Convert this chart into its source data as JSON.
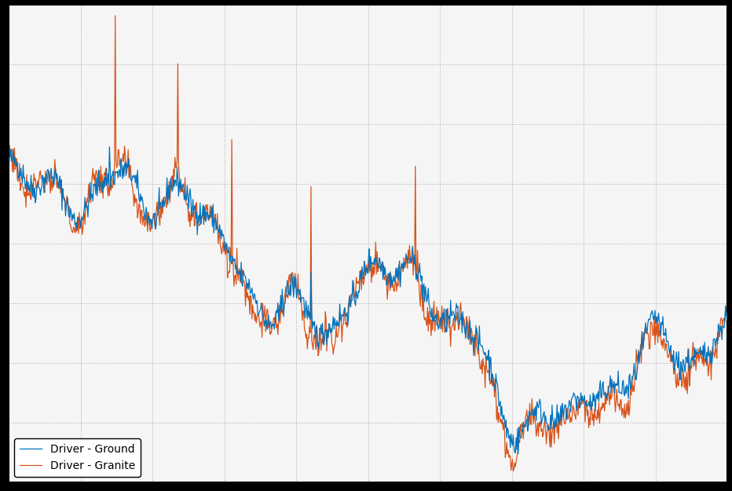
{
  "legend_entries": [
    "Driver - Ground",
    "Driver - Granite"
  ],
  "line_colors": [
    "#0072bd",
    "#d95319"
  ],
  "axes_facecolor": "#f5f5f5",
  "figure_facecolor": "#000000",
  "grid_color": "#aaaaaa",
  "grid_linestyle": ":",
  "grid_linewidth": 0.7,
  "spine_color": "#000000",
  "spine_linewidth": 1.5,
  "legend_fontsize": 10,
  "legend_loc": "lower left",
  "n_points": 1000,
  "figsize": [
    9.32,
    6.25
  ],
  "dpi": 100,
  "line_width": 0.9,
  "n_xticks": 11,
  "n_yticks": 9
}
